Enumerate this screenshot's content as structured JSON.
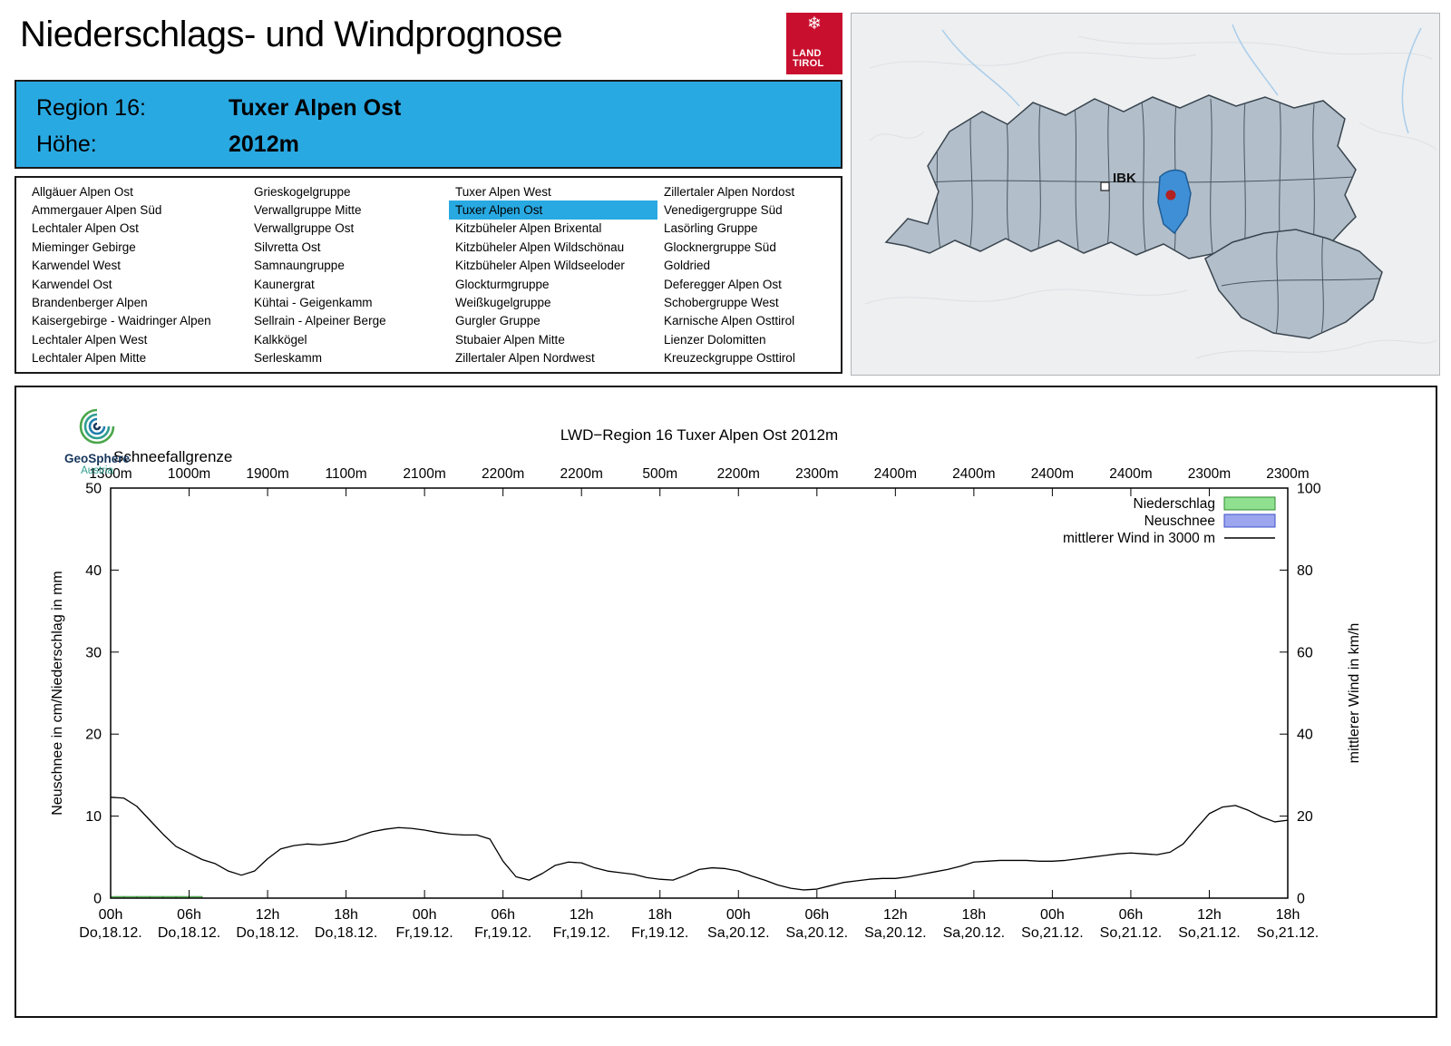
{
  "page": {
    "title": "Niederschlags- und Windprognose"
  },
  "logo": {
    "land_tirol": {
      "line1": "LAND",
      "line2": "TIROL"
    }
  },
  "region_header": {
    "region_label": "Region 16:",
    "region_value": "Tuxer Alpen Ost",
    "altitude_label": "Höhe:",
    "altitude_value": "2012m",
    "bg_color": "#29a9e2"
  },
  "region_list": {
    "selected": "Tuxer Alpen Ost",
    "columns": [
      [
        "Allgäuer Alpen Ost",
        "Ammergauer Alpen Süd",
        "Lechtaler Alpen Ost",
        "Mieminger Gebirge",
        "Karwendel West",
        "Karwendel Ost",
        "Brandenberger Alpen",
        "Kaisergebirge - Waidringer Alpen",
        "Lechtaler Alpen West",
        "Lechtaler Alpen Mitte"
      ],
      [
        "Grieskogelgruppe",
        "Verwallgruppe Mitte",
        "Verwallgruppe Ost",
        "Silvretta Ost",
        "Samnaungruppe",
        "Kaunergrat",
        "Kühtai - Geigenkamm",
        "Sellrain - Alpeiner Berge",
        "Kalkkögel",
        "Serleskamm"
      ],
      [
        "Tuxer Alpen West",
        "Tuxer Alpen Ost",
        "Kitzbüheler Alpen Brixental",
        "Kitzbüheler Alpen Wildschönau",
        "Kitzbüheler Alpen Wildseeloder",
        "Glockturmgruppe",
        "Weißkugelgruppe",
        "Gurgler Gruppe",
        "Stubaier Alpen Mitte",
        "Zillertaler Alpen Nordwest"
      ],
      [
        "Zillertaler Alpen Nordost",
        "Venedigergruppe Süd",
        "Lasörling Gruppe",
        "Glocknergruppe Süd",
        "Goldried",
        "Deferegger Alpen Ost",
        "Schobergruppe West",
        "Karnische Alpen Osttirol",
        "Lienzer Dolomitten",
        "Kreuzeckgruppe Osttirol"
      ]
    ]
  },
  "map": {
    "marker_label": "IBK",
    "selected_region_color": "#3f8fd6",
    "region_color": "#b2bec9",
    "marker_dot_color": "#b22222"
  },
  "geosphere": {
    "line1": "GeoSphere",
    "line2": "Austria"
  },
  "chart_data": {
    "type": "line",
    "title": "LWD−Region 16 Tuxer Alpen Ost 2012m",
    "snowline": {
      "label": "Schneefallgrenze",
      "values": [
        "1300m",
        "1000m",
        "1900m",
        "1100m",
        "2100m",
        "2200m",
        "2200m",
        "500m",
        "2200m",
        "2300m",
        "2400m",
        "2400m",
        "2400m",
        "2400m",
        "2300m",
        "2300m"
      ]
    },
    "x": {
      "range_hours": [
        0,
        90
      ],
      "tick_hours": [
        0,
        6,
        12,
        18,
        24,
        30,
        36,
        42,
        48,
        54,
        60,
        66,
        72,
        78,
        84,
        90
      ],
      "tick_labels": [
        "00h",
        "06h",
        "12h",
        "18h",
        "00h",
        "06h",
        "12h",
        "18h",
        "00h",
        "06h",
        "12h",
        "18h",
        "00h",
        "06h",
        "12h",
        "18h"
      ],
      "tick_dates": [
        "Do,18.12.",
        "Do,18.12.",
        "Do,18.12.",
        "Do,18.12.",
        "Fr,19.12.",
        "Fr,19.12.",
        "Fr,19.12.",
        "Fr,19.12.",
        "Sa,20.12.",
        "Sa,20.12.",
        "Sa,20.12.",
        "Sa,20.12.",
        "So,21.12.",
        "So,21.12.",
        "So,21.12.",
        "So,21.12."
      ]
    },
    "y_left": {
      "label": "Neuschnee in cm/Niederschlag in mm",
      "min": 0,
      "max": 50,
      "ticks": [
        0,
        10,
        20,
        30,
        40,
        50
      ]
    },
    "y_right": {
      "label": "mittlerer Wind in km/h",
      "min": 0,
      "max": 100,
      "ticks": [
        0,
        20,
        40,
        60,
        80,
        100
      ]
    },
    "legend": [
      {
        "label": "Niederschlag",
        "type": "box",
        "fill": "#8fe08f",
        "stroke": "#2e8b2e"
      },
      {
        "label": "Neuschnee",
        "type": "box",
        "fill": "#9ba6ee",
        "stroke": "#3c50c8"
      },
      {
        "label": "mittlerer Wind in 3000 m",
        "type": "line",
        "stroke": "#000000"
      }
    ],
    "series": {
      "niederschlag_mm": [
        [
          0,
          0.2
        ],
        [
          1,
          0.2
        ],
        [
          2,
          0.2
        ],
        [
          3,
          0.2
        ],
        [
          4,
          0.2
        ],
        [
          5,
          0.2
        ],
        [
          6,
          0.2
        ]
      ],
      "neuschnee_cm": [],
      "wind_kmh": [
        [
          0,
          24.6
        ],
        [
          1,
          24.4
        ],
        [
          2,
          22.4
        ],
        [
          3,
          19.0
        ],
        [
          4,
          15.6
        ],
        [
          5,
          12.6
        ],
        [
          6,
          11.0
        ],
        [
          7,
          9.4
        ],
        [
          8,
          8.4
        ],
        [
          9,
          6.6
        ],
        [
          10,
          5.6
        ],
        [
          11,
          6.6
        ],
        [
          12,
          9.6
        ],
        [
          13,
          12.0
        ],
        [
          14,
          12.8
        ],
        [
          15,
          13.2
        ],
        [
          16,
          13.0
        ],
        [
          17,
          13.4
        ],
        [
          18,
          14.0
        ],
        [
          19,
          15.2
        ],
        [
          20,
          16.2
        ],
        [
          21,
          16.8
        ],
        [
          22,
          17.2
        ],
        [
          23,
          17.0
        ],
        [
          24,
          16.6
        ],
        [
          25,
          16.0
        ],
        [
          26,
          15.6
        ],
        [
          27,
          15.4
        ],
        [
          28,
          15.4
        ],
        [
          29,
          14.4
        ],
        [
          30,
          9.0
        ],
        [
          31,
          5.2
        ],
        [
          32,
          4.4
        ],
        [
          33,
          6.0
        ],
        [
          34,
          8.0
        ],
        [
          35,
          8.8
        ],
        [
          36,
          8.6
        ],
        [
          37,
          7.4
        ],
        [
          38,
          6.6
        ],
        [
          39,
          6.2
        ],
        [
          40,
          5.8
        ],
        [
          41,
          5.0
        ],
        [
          42,
          4.6
        ],
        [
          43,
          4.4
        ],
        [
          44,
          5.6
        ],
        [
          45,
          7.0
        ],
        [
          46,
          7.4
        ],
        [
          47,
          7.2
        ],
        [
          48,
          6.6
        ],
        [
          49,
          5.4
        ],
        [
          50,
          4.4
        ],
        [
          51,
          3.2
        ],
        [
          52,
          2.4
        ],
        [
          53,
          2.0
        ],
        [
          54,
          2.2
        ],
        [
          55,
          3.0
        ],
        [
          56,
          3.8
        ],
        [
          57,
          4.2
        ],
        [
          58,
          4.6
        ],
        [
          59,
          4.8
        ],
        [
          60,
          4.8
        ],
        [
          61,
          5.2
        ],
        [
          62,
          5.8
        ],
        [
          63,
          6.4
        ],
        [
          64,
          7.0
        ],
        [
          65,
          7.8
        ],
        [
          66,
          8.8
        ],
        [
          67,
          9.0
        ],
        [
          68,
          9.2
        ],
        [
          69,
          9.2
        ],
        [
          70,
          9.2
        ],
        [
          71,
          9.0
        ],
        [
          72,
          9.0
        ],
        [
          73,
          9.2
        ],
        [
          74,
          9.6
        ],
        [
          75,
          10.0
        ],
        [
          76,
          10.4
        ],
        [
          77,
          10.8
        ],
        [
          78,
          11.0
        ],
        [
          79,
          10.8
        ],
        [
          80,
          10.6
        ],
        [
          81,
          11.2
        ],
        [
          82,
          13.2
        ],
        [
          83,
          17.0
        ],
        [
          84,
          20.6
        ],
        [
          85,
          22.2
        ],
        [
          86,
          22.6
        ],
        [
          87,
          21.4
        ],
        [
          88,
          19.8
        ],
        [
          89,
          18.6
        ],
        [
          90,
          19.0
        ]
      ]
    }
  }
}
